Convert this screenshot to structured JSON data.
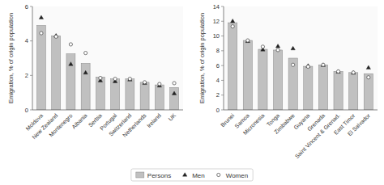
{
  "chart_data": [
    {
      "type": "bar",
      "categories": [
        "Moldova",
        "New Zealand",
        "Montenegro",
        "Albania",
        "Serbia",
        "Portugal",
        "Switzerland",
        "Netherlands",
        "Ireland",
        "UK"
      ],
      "series": [
        {
          "name": "Persons",
          "type": "bar",
          "color": "#c0c0c0",
          "values": [
            4.9,
            4.3,
            3.25,
            2.7,
            1.9,
            1.8,
            1.8,
            1.6,
            1.45,
            1.3
          ]
        },
        {
          "name": "Men",
          "type": "scatter",
          "marker": "triangle",
          "color": "#222222",
          "values": [
            5.35,
            4.3,
            2.65,
            2.15,
            1.7,
            1.65,
            1.75,
            1.55,
            1.4,
            0.95
          ]
        },
        {
          "name": "Women",
          "type": "scatter",
          "marker": "circle",
          "color": "#555555",
          "values": [
            4.45,
            4.25,
            3.8,
            3.3,
            1.85,
            1.8,
            1.8,
            1.6,
            1.5,
            1.55
          ]
        }
      ],
      "ylim": [
        0,
        6
      ],
      "yticks": [
        0,
        2,
        4,
        6
      ],
      "ylabel": "Emigration, % of origin population",
      "grid": false,
      "legend": "bottom"
    },
    {
      "type": "bar",
      "categories": [
        "Brunei",
        "Samoa",
        "Micronesia",
        "Tonga",
        "Zimbabwe",
        "Guyana",
        "Grenada",
        "Saint Vincent & Grenad.",
        "East Timor",
        "El Salvador"
      ],
      "series": [
        {
          "name": "Persons",
          "type": "bar",
          "color": "#c0c0c0",
          "values": [
            11.8,
            9.4,
            8.2,
            8.1,
            7.0,
            5.9,
            6.1,
            5.2,
            5.05,
            4.9
          ]
        },
        {
          "name": "Men",
          "type": "scatter",
          "marker": "triangle",
          "color": "#222222",
          "values": [
            12.0,
            9.3,
            8.15,
            8.6,
            8.3,
            5.95,
            6.05,
            5.15,
            5.0,
            5.7
          ]
        },
        {
          "name": "Women",
          "type": "scatter",
          "marker": "circle",
          "color": "#555555",
          "values": [
            11.3,
            9.4,
            8.55,
            8.1,
            6.1,
            5.85,
            6.1,
            5.2,
            5.05,
            4.4
          ]
        }
      ],
      "ylim": [
        0,
        14
      ],
      "yticks": [
        0,
        2,
        4,
        6,
        8,
        10,
        12,
        14
      ],
      "ylabel": "Emigration, % of origin population",
      "grid": false
    }
  ]
}
